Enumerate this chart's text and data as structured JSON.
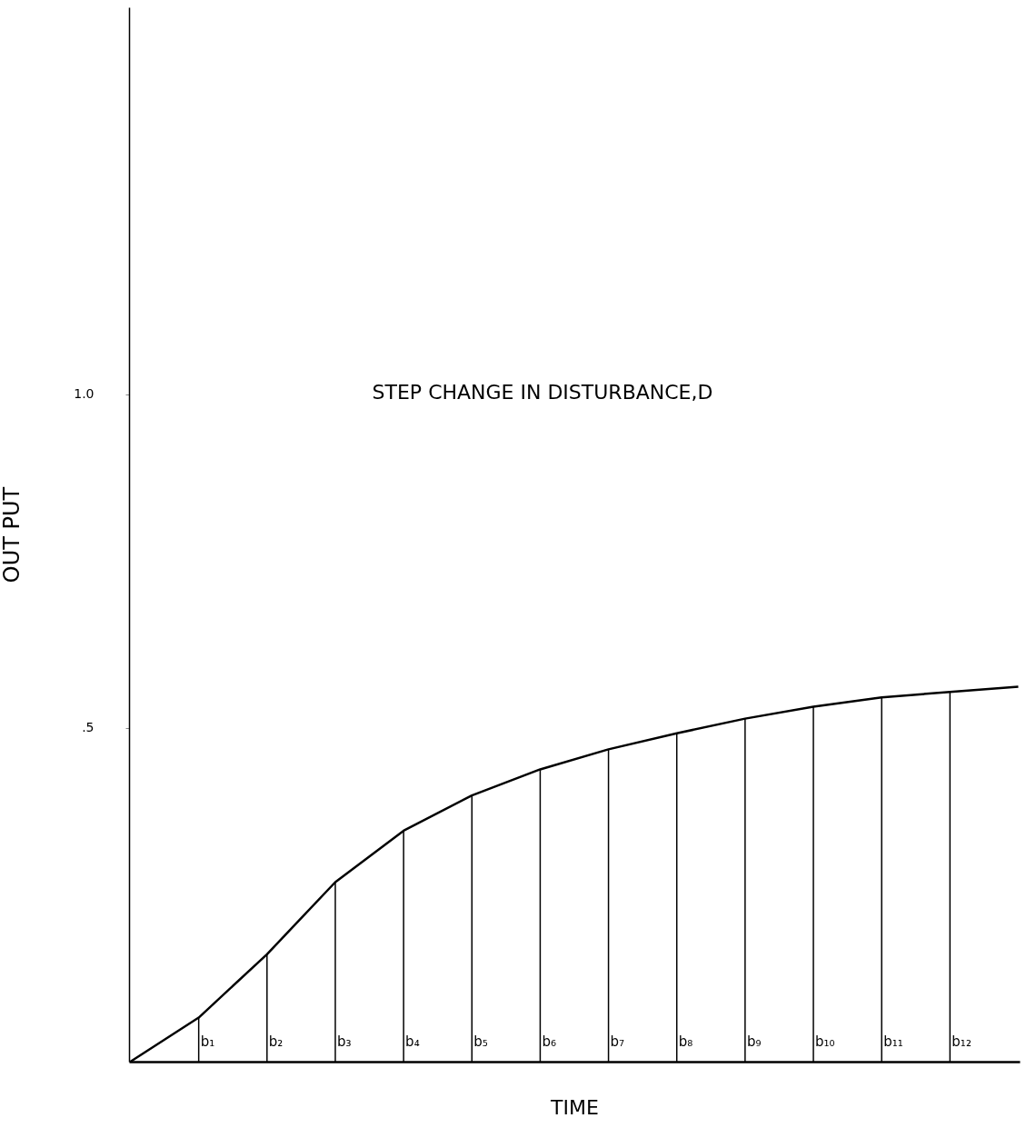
{
  "chart_data": {
    "type": "line",
    "title": "STEP CHANGE IN DISTURBANCE,D",
    "xlabel": "TIME",
    "ylabel": "OUT PUT",
    "categories": [
      null,
      null,
      null,
      null,
      null,
      null,
      null,
      null,
      null,
      null,
      null,
      null,
      null,
      null
    ],
    "ylim": [
      0,
      1.58
    ],
    "yticks": [
      {
        "value": 0.5,
        "label": ".5"
      },
      {
        "value": 1,
        "label": "1.0"
      }
    ],
    "tick_labels": "y",
    "series": [
      {
        "color": "#000000",
        "values": [
          0,
          0.066,
          0.161,
          0.269,
          0.346,
          0.399,
          0.438,
          0.468,
          0.492,
          0.514,
          0.532,
          0.546,
          0.554,
          0.562
        ]
      },
      {
        "type": "bar",
        "color": "#000000",
        "values": [
          null,
          0.066,
          0.161,
          0.269,
          0.346,
          0.399,
          0.438,
          0.468,
          0.492,
          0.514,
          0.532,
          0.546,
          0.554,
          null
        ],
        "value_labels": [
          null,
          "b₁",
          "b₂",
          "b₃",
          "b₄",
          "b₅",
          "b₆",
          "b₇",
          "b₈",
          "b₉",
          "b₁₀",
          "b₁₁",
          "b₁₂",
          null
        ]
      }
    ]
  }
}
